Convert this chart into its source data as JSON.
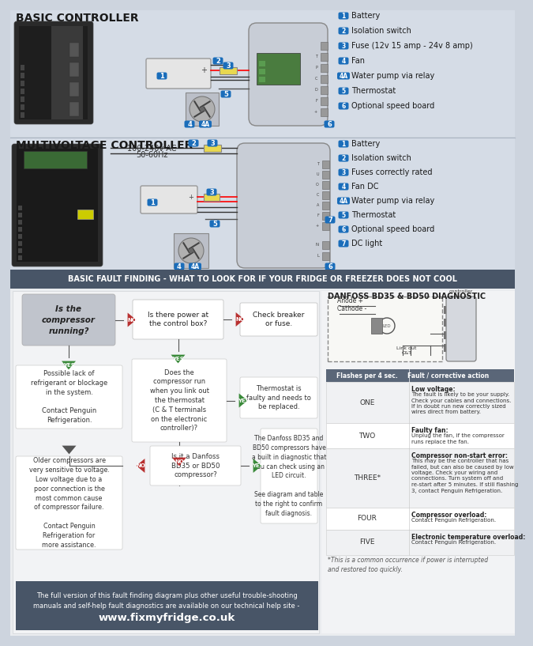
{
  "bg_color": "#cdd4de",
  "section_bg": "#d2d9e3",
  "basic_controller_title": "BASIC CONTROLLER",
  "multi_controller_title": "MULTIVOLTAGE CONTROLLER",
  "basic_legend": [
    [
      "1",
      "Battery"
    ],
    [
      "2",
      "Isolation switch"
    ],
    [
      "3",
      "Fuse (12v 15 amp - 24v 8 amp)"
    ],
    [
      "4",
      "Fan"
    ],
    [
      "4A",
      "Water pump via relay"
    ],
    [
      "5",
      "Thermostat"
    ],
    [
      "6",
      "Optional speed board"
    ]
  ],
  "multi_legend": [
    [
      "1",
      "Battery"
    ],
    [
      "2",
      "Isolation switch"
    ],
    [
      "3",
      "Fuses correctly rated"
    ],
    [
      "4",
      "Fan DC"
    ],
    [
      "4A",
      "Water pump via relay"
    ],
    [
      "5",
      "Thermostat"
    ],
    [
      "6",
      "Optional speed board"
    ],
    [
      "7",
      "DC light"
    ]
  ],
  "fault_header": "BASIC FAULT FINDING - WHAT TO LOOK FOR IF YOUR FRIDGE OR FREEZER DOES NOT COOL",
  "danfoss_title": "DANFOSS BD35 & BD50 DIAGNOSTIC",
  "danfoss_table_header": [
    "Flashes per 4 sec.",
    "Fault / corrective action"
  ],
  "danfoss_rows": [
    [
      "ONE",
      "Low voltage:",
      "The fault is likely to be your supply.\nCheck your cables and connections.\nIf in doubt run new correctly sized\nwires direct from battery."
    ],
    [
      "TWO",
      "Faulty fan:",
      "Unplug the fan, if the compressor\nruns replace the fan."
    ],
    [
      "THREE*",
      "Compressor non-start error:",
      "This may be the controller that has\nfailed, but can also be caused by low\nvoltage. Check your wiring and\nconnections. Turn system off and\nre-start after 5 minutes. If still flashing\n3, contact Penguin Refrigeration."
    ],
    [
      "FOUR",
      "Compressor overload:",
      "Contact Penguin Refrigeration."
    ],
    [
      "FIVE",
      "Electronic temperature overload:",
      "Contact Penguin Refrigeration."
    ]
  ],
  "danfoss_footnote": "*This is a common occurrence if power is interrupted\nand restored too quickly.",
  "flowchart": {
    "start": "Is the\ncompressor\nrunning?",
    "q1": "Is there power at\nthe control box?",
    "check_fuse": "Check breaker\nor fuse.",
    "yes1": "Possible lack of\nrefrigerant or blockage\nin the system.\n\nContact Penguin\nRefrigeration.",
    "q2": "Does the\ncompressor run\nwhen you link out\nthe thermostat\n(C & T terminals\non the electronic\ncontroller)?",
    "thermo": "Thermostat is\nfaulty and needs to\nbe replaced.",
    "old_comp": "Older compressors are\nvery sensitive to voltage.\nLow voltage due to a\npoor connection is the\nmost common cause\nof compressor failure.\n\nContact Penguin\nRefrigeration for\nmore assistance.",
    "q3": "Is it a Danfoss\nBD35 or BD50\ncompressor?",
    "danfoss_action": "The Danfoss BD35 and\nBD50 compressors have\na built in diagnostic that\nyou can check using an\nLED circuit.\n\nSee diagram and table\nto the right to confirm\nfault diagnosis."
  },
  "footer_text": "The full version of this fault finding diagram plus other useful trouble-shooting\nmanuals and self-help fault diagnostics are available on our technical help site -",
  "footer_url": "www.fixmyfridge.co.uk",
  "blue_badge_color": "#1a6dba",
  "yes_color": "#3a8a3a",
  "no_color": "#b83030",
  "header_bg": "#485567",
  "table_header_bg": "#5a6678"
}
